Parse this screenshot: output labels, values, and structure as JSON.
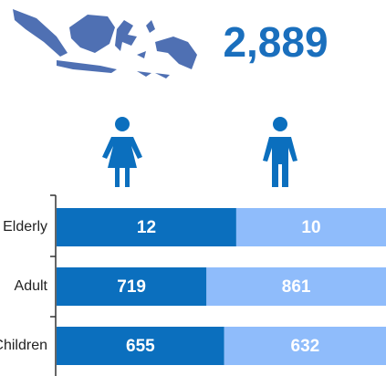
{
  "chart_data": {
    "type": "bar",
    "orientation": "horizontal",
    "stacking": "percent",
    "total": "2,889",
    "categories": [
      "Elderly",
      "Adult",
      "Children"
    ],
    "series": [
      {
        "color": "#0b6fbe",
        "values": [
          12,
          719,
          655
        ]
      },
      {
        "color": "#8fbcfb",
        "values": [
          10,
          861,
          632
        ]
      }
    ]
  }
}
